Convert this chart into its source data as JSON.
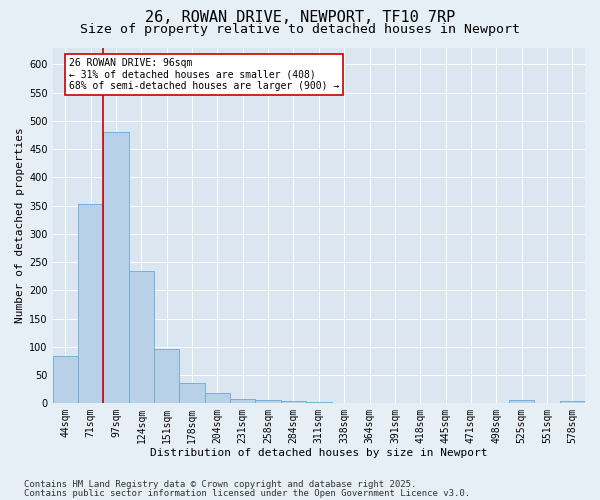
{
  "title": "26, ROWAN DRIVE, NEWPORT, TF10 7RP",
  "subtitle": "Size of property relative to detached houses in Newport",
  "xlabel": "Distribution of detached houses by size in Newport",
  "ylabel": "Number of detached properties",
  "footnote1": "Contains HM Land Registry data © Crown copyright and database right 2025.",
  "footnote2": "Contains public sector information licensed under the Open Government Licence v3.0.",
  "categories": [
    "44sqm",
    "71sqm",
    "97sqm",
    "124sqm",
    "151sqm",
    "178sqm",
    "204sqm",
    "231sqm",
    "258sqm",
    "284sqm",
    "311sqm",
    "338sqm",
    "364sqm",
    "391sqm",
    "418sqm",
    "445sqm",
    "471sqm",
    "498sqm",
    "525sqm",
    "551sqm",
    "578sqm"
  ],
  "values": [
    83,
    352,
    480,
    235,
    96,
    35,
    18,
    7,
    5,
    4,
    2,
    1,
    1,
    0,
    0,
    0,
    0,
    0,
    5,
    1,
    4
  ],
  "bar_color": "#b8d0e8",
  "bar_edge_color": "#6aaad4",
  "vline_x_index": 2,
  "vline_color": "#cc0000",
  "annotation_text": "26 ROWAN DRIVE: 96sqm\n← 31% of detached houses are smaller (408)\n68% of semi-detached houses are larger (900) →",
  "annotation_box_facecolor": "#ffffff",
  "annotation_box_edgecolor": "#cc0000",
  "ylim": [
    0,
    630
  ],
  "yticks": [
    0,
    50,
    100,
    150,
    200,
    250,
    300,
    350,
    400,
    450,
    500,
    550,
    600
  ],
  "background_color": "#e6eef6",
  "plot_background": "#dce6f0",
  "grid_color": "#ffffff",
  "title_fontsize": 11,
  "subtitle_fontsize": 9.5,
  "label_fontsize": 8,
  "tick_fontsize": 7,
  "annotation_fontsize": 7,
  "footnote_fontsize": 6.5
}
